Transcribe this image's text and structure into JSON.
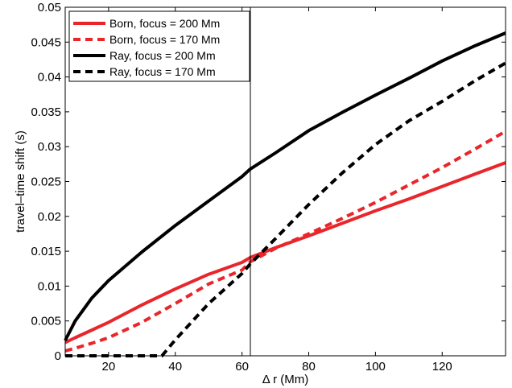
{
  "chart_data": {
    "type": "line",
    "title": "",
    "xlabel": "Δ r (Mm)",
    "ylabel": "travel–time shift (s)",
    "xlim": [
      7,
      139
    ],
    "ylim": [
      0,
      0.05
    ],
    "grid": false,
    "legend_position": "top-left",
    "xticks": [
      20,
      40,
      60,
      80,
      100,
      120
    ],
    "xtick_labels": [
      "20",
      "40",
      "60",
      "80",
      "100",
      "120"
    ],
    "yticks": [
      0,
      0.005,
      0.01,
      0.015,
      0.02,
      0.025,
      0.03,
      0.035,
      0.04,
      0.045,
      0.05
    ],
    "ytick_labels": [
      "0",
      "0.005",
      "0.01",
      "0.015",
      "0.02",
      "0.025",
      "0.03",
      "0.035",
      "0.04",
      "0.045",
      "0.05"
    ],
    "vline_x": 62.5,
    "series": [
      {
        "name": "Born, focus = 200 Mm",
        "color": "#e8262b",
        "style": "solid",
        "x": [
          7,
          10,
          15,
          20,
          30,
          40,
          50,
          60,
          62.5,
          70,
          80,
          90,
          100,
          110,
          120,
          130,
          139
        ],
        "y": [
          0.0019,
          0.0026,
          0.0037,
          0.0048,
          0.0073,
          0.0096,
          0.0117,
          0.0134,
          0.0141,
          0.0155,
          0.0172,
          0.019,
          0.0208,
          0.0225,
          0.0243,
          0.0261,
          0.0277
        ]
      },
      {
        "name": "Born, focus = 170 Mm",
        "color": "#e8262b",
        "style": "dashed",
        "x": [
          7,
          10,
          15,
          20,
          30,
          40,
          50,
          60,
          62.5,
          70,
          80,
          90,
          100,
          110,
          120,
          130,
          139
        ],
        "y": [
          0.0007,
          0.0011,
          0.0018,
          0.0026,
          0.0048,
          0.0075,
          0.0103,
          0.0123,
          0.0135,
          0.0154,
          0.0175,
          0.0197,
          0.022,
          0.0245,
          0.027,
          0.0297,
          0.0322
        ]
      },
      {
        "name": "Ray,  focus = 200 Mm",
        "color": "#000000",
        "style": "solid",
        "x": [
          7,
          10,
          15,
          20,
          30,
          40,
          50,
          60,
          62.5,
          70,
          80,
          90,
          100,
          110,
          120,
          130,
          139
        ],
        "y": [
          0.0022,
          0.005,
          0.0083,
          0.0108,
          0.0149,
          0.0187,
          0.0222,
          0.0257,
          0.0268,
          0.0291,
          0.0323,
          0.0349,
          0.0374,
          0.0398,
          0.0423,
          0.0445,
          0.0463
        ]
      },
      {
        "name": "Ray,  focus = 170 Mm",
        "color": "#000000",
        "style": "dashed",
        "x": [
          7,
          20,
          30,
          36,
          40,
          50,
          60,
          62.5,
          70,
          80,
          90,
          100,
          110,
          120,
          130,
          139
        ],
        "y": [
          0,
          0,
          0,
          0,
          0.0023,
          0.0075,
          0.0118,
          0.0132,
          0.0168,
          0.0217,
          0.0262,
          0.0303,
          0.0337,
          0.0365,
          0.0395,
          0.042
        ]
      }
    ]
  }
}
